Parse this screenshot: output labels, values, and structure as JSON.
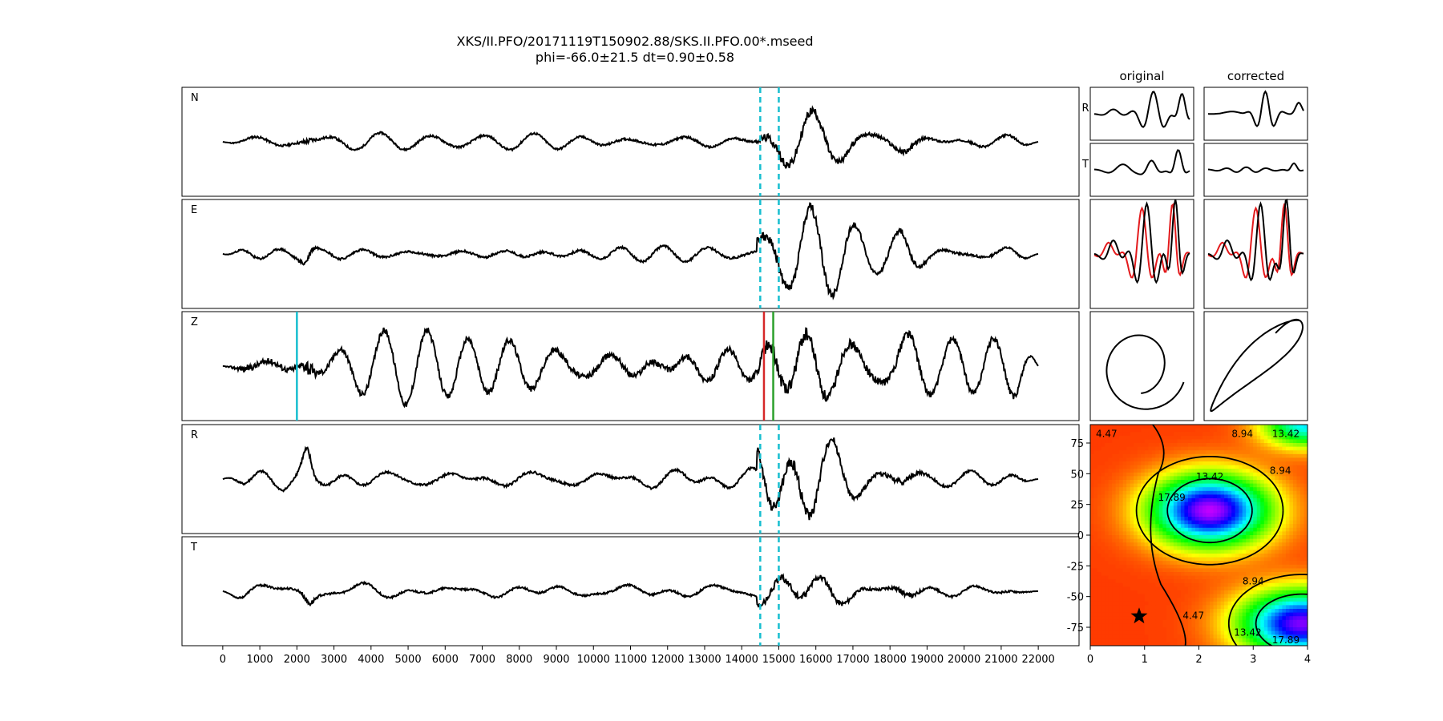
{
  "figure": {
    "title": "XKS/II.PFO/20171119T150902.88/SKS.II.PFO.00*.mseed",
    "subtitle": "phi=-66.0±21.5 dt=0.90±0.58"
  },
  "chart_data": [
    {
      "type": "line",
      "name": "waveforms",
      "traces": [
        {
          "label": "N",
          "amplitude": 0.32,
          "burst": 0.62,
          "seed": 11,
          "markers": "window"
        },
        {
          "label": "E",
          "amplitude": 0.34,
          "burst": 0.78,
          "seed": 23,
          "markers": "window"
        },
        {
          "label": "Z",
          "amplitude": 0.42,
          "burst": 0.52,
          "seed": 37,
          "markers": "picks"
        },
        {
          "label": "R",
          "amplitude": 0.36,
          "burst": 0.72,
          "seed": 41,
          "markers": "window"
        },
        {
          "label": "T",
          "amplitude": 0.3,
          "burst": 0.48,
          "seed": 53,
          "markers": "window"
        }
      ],
      "xlim": [
        -1100,
        23100
      ],
      "xticks": [
        0,
        1000,
        2000,
        3000,
        4000,
        5000,
        6000,
        7000,
        8000,
        9000,
        10000,
        11000,
        12000,
        13000,
        14000,
        15000,
        16000,
        17000,
        18000,
        19000,
        20000,
        21000,
        22000
      ],
      "trace_range": [
        0,
        22000
      ],
      "window": {
        "start": 14500,
        "end": 15000,
        "color": "#17becf"
      },
      "picks": [
        {
          "x": 2000,
          "color": "#17becf"
        },
        {
          "x": 14600,
          "color": "#d62728"
        },
        {
          "x": 14850,
          "color": "#2ca02c"
        }
      ]
    },
    {
      "type": "line",
      "name": "particle-motion",
      "column_titles": [
        "original",
        "corrected"
      ],
      "row_labels": [
        "R",
        "T"
      ],
      "overlay_color": "#e31a1c"
    },
    {
      "type": "heatmap",
      "name": "error-surface",
      "xlim": [
        0,
        4
      ],
      "ylim": [
        -90,
        90
      ],
      "xticks": [
        0,
        1,
        2,
        3,
        4
      ],
      "yticks": [
        -75,
        -50,
        -25,
        0,
        25,
        50,
        75
      ],
      "contour_levels": [
        "4.47",
        "8.94",
        "13.42",
        "17.89"
      ],
      "best": {
        "x": 0.9,
        "y": -66.0
      }
    }
  ]
}
